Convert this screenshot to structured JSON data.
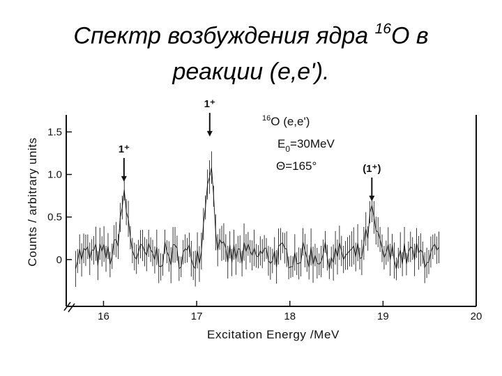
{
  "slide": {
    "title_line1_pre": "Спектр возбуждения ядра ",
    "title_sup": "16",
    "title_line1_post": "О в",
    "title_line2": "реакции (е,е')."
  },
  "chart_data": {
    "type": "line",
    "xlabel": "Excitation Energy /MeV",
    "ylabel": "Counts / arbitrary units",
    "xlim": [
      15.6,
      20.0
    ],
    "ylim": [
      -0.55,
      1.7
    ],
    "x_ticks": [
      16,
      17,
      18,
      19,
      20
    ],
    "y_ticks": [
      0,
      0.5,
      1.0,
      1.5
    ],
    "x_tick_labels": [
      "16",
      "17",
      "18",
      "19",
      "20"
    ],
    "y_tick_labels": [
      "0",
      "0.5",
      "1.0",
      "1.5"
    ],
    "grid": false,
    "x_range_data": [
      15.7,
      19.6
    ],
    "baseline": 0.05,
    "noise_amplitude": 0.16,
    "peaks": [
      {
        "label": "1⁺",
        "energy": 16.22,
        "height": 0.85
      },
      {
        "label": "1⁺",
        "energy": 17.14,
        "height": 1.38
      },
      {
        "label": "(1⁺)",
        "energy": 18.88,
        "height": 0.62
      }
    ],
    "inset": {
      "reaction_sup": "16",
      "reaction": "O (e,e')",
      "energy_prefix": "E",
      "energy_sub": "0",
      "energy_value": "=30MeV",
      "angle": "Θ=165°"
    }
  }
}
